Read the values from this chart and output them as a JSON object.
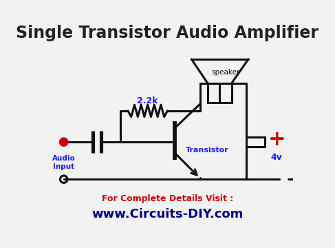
{
  "title": "Single Transistor Audio Amplifier",
  "title_fontsize": 17,
  "title_fontweight": "bold",
  "title_color": "#222222",
  "bg_color": "#f2f2f2",
  "footer_text1": "For Complete Details Visit :",
  "footer_text2": "www.Circuits-DIY.com",
  "footer_color1": "#cc0000",
  "footer_color2": "#000080",
  "label_2k2": "2.2k",
  "label_transistor": "Transistor",
  "label_speaker": "speaker",
  "label_audio": "Audio\nInput",
  "label_4v": "4v",
  "label_plus": "+",
  "label_minus": "-",
  "line_color": "#111111",
  "blue_color": "#1a1aff",
  "red_color": "#cc0000",
  "lw": 2.2
}
